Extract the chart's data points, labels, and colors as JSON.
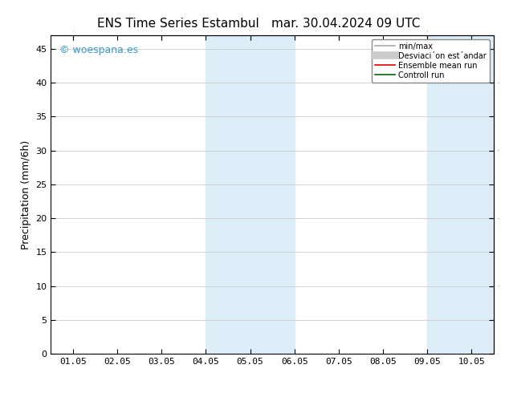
{
  "title1": "ENS Time Series Estambul",
  "title2": "mar. 30.04.2024 09 UTC",
  "ylabel": "Precipitation (mm/6h)",
  "xlim": [
    -0.5,
    9.5
  ],
  "ylim": [
    0,
    47
  ],
  "yticks": [
    0,
    5,
    10,
    15,
    20,
    25,
    30,
    35,
    40,
    45
  ],
  "xtick_labels": [
    "01.05",
    "02.05",
    "03.05",
    "04.05",
    "05.05",
    "06.05",
    "07.05",
    "08.05",
    "09.05",
    "10.05"
  ],
  "shaded_bands": [
    [
      3.0,
      4.0
    ],
    [
      4.0,
      5.0
    ],
    [
      8.0,
      9.0
    ],
    [
      9.0,
      9.5
    ]
  ],
  "band_color": "#ddeef8",
  "legend_items": [
    {
      "label": "min/max",
      "color": "#aaaaaa",
      "lw": 1.2,
      "style": "line"
    },
    {
      "label": "Desviaci´on est´andar",
      "color": "#cccccc",
      "lw": 7,
      "style": "thick"
    },
    {
      "label": "Ensemble mean run",
      "color": "#dd0000",
      "lw": 1.2,
      "style": "line"
    },
    {
      "label": "Controll run",
      "color": "#006600",
      "lw": 1.2,
      "style": "line"
    }
  ],
  "watermark": "© woespana.es",
  "watermark_color": "#3399cc",
  "watermark_fontsize": 9,
  "title_fontsize": 11,
  "ylabel_fontsize": 9,
  "tick_fontsize": 8,
  "background_color": "#ffffff",
  "plot_bg_color": "#ffffff",
  "grid_color": "#cccccc",
  "spine_color": "#000000"
}
